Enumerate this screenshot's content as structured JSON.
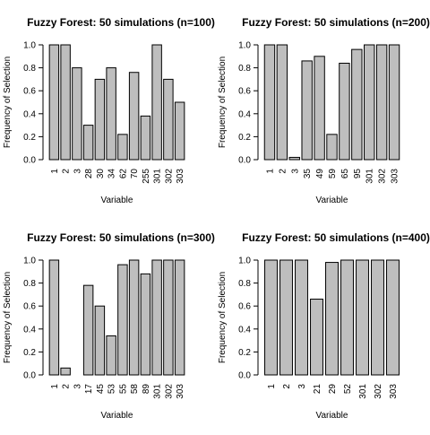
{
  "style": {
    "bar_fill": "#bebebe",
    "bar_stroke": "#000000",
    "background": "#ffffff"
  },
  "chart_data": [
    {
      "type": "bar",
      "title": "Fuzzy Forest: 50 simulations (n=100)",
      "xlabel": "Variable",
      "ylabel": "Frequency of Selection",
      "ylim": [
        0,
        1
      ],
      "yticks": [
        "0.0",
        "0.2",
        "0.4",
        "0.6",
        "0.8",
        "1.0"
      ],
      "categories": [
        "1",
        "2",
        "3",
        "28",
        "30",
        "34",
        "62",
        "70",
        "255",
        "301",
        "302",
        "303"
      ],
      "values": [
        1.0,
        1.0,
        0.8,
        0.3,
        0.7,
        0.8,
        0.22,
        0.76,
        0.38,
        1.0,
        0.7,
        0.5
      ]
    },
    {
      "type": "bar",
      "title": "Fuzzy Forest: 50 simulations (n=200)",
      "xlabel": "Variable",
      "ylabel": "Frequency of Selection",
      "ylim": [
        0,
        1
      ],
      "yticks": [
        "0.0",
        "0.2",
        "0.4",
        "0.6",
        "0.8",
        "1.0"
      ],
      "categories": [
        "1",
        "2",
        "3",
        "35",
        "49",
        "59",
        "65",
        "95",
        "301",
        "302",
        "303"
      ],
      "values": [
        1.0,
        1.0,
        0.02,
        0.86,
        0.9,
        0.22,
        0.84,
        0.96,
        1.0,
        1.0,
        1.0
      ]
    },
    {
      "type": "bar",
      "title": "Fuzzy Forest: 50 simulations (n=300)",
      "xlabel": "Variable",
      "ylabel": "Frequency of Selection",
      "ylim": [
        0,
        1
      ],
      "yticks": [
        "0.0",
        "0.2",
        "0.4",
        "0.6",
        "0.8",
        "1.0"
      ],
      "categories": [
        "1",
        "2",
        "3",
        "17",
        "45",
        "53",
        "55",
        "58",
        "89",
        "301",
        "302",
        "303"
      ],
      "values": [
        1.0,
        0.06,
        0.0,
        0.78,
        0.6,
        0.34,
        0.96,
        1.0,
        0.88,
        1.0,
        1.0,
        1.0
      ]
    },
    {
      "type": "bar",
      "title": "Fuzzy Forest: 50 simulations (n=400)",
      "xlabel": "Variable",
      "ylabel": "Frequency of Selection",
      "ylim": [
        0,
        1
      ],
      "yticks": [
        "0.0",
        "0.2",
        "0.4",
        "0.6",
        "0.8",
        "1.0"
      ],
      "categories": [
        "1",
        "2",
        "3",
        "21",
        "29",
        "52",
        "301",
        "302",
        "303"
      ],
      "values": [
        1.0,
        1.0,
        1.0,
        0.66,
        0.98,
        1.0,
        1.0,
        1.0,
        1.0
      ]
    }
  ]
}
